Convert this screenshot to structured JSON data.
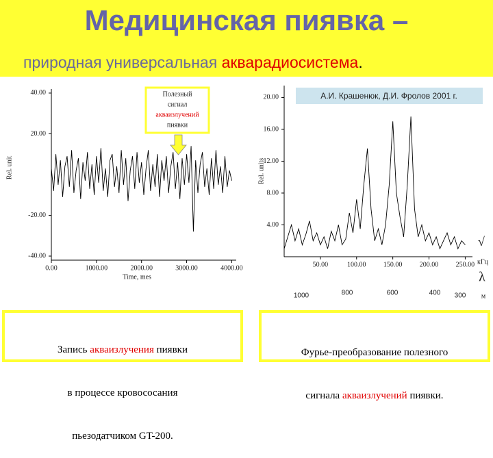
{
  "header": {
    "title": "Медицинская пиявка –",
    "subtitle": [
      "природная универсальная ",
      "акварадиосистема",
      "."
    ]
  },
  "chart_data": [
    {
      "type": "line",
      "ylabel": "Rel. unit",
      "xlabel": "Time, mes",
      "annotation": [
        "Полезный",
        "сигнал",
        "акваизлучений",
        "пиявки"
      ],
      "xlim": [
        0,
        4100
      ],
      "ylim": [
        -42,
        42
      ],
      "xticks": [
        {
          "value": 0,
          "label": "0.00"
        },
        {
          "value": 1000,
          "label": "1000.00"
        },
        {
          "value": 2000,
          "label": "2000.00"
        },
        {
          "value": 3000,
          "label": "3000.00"
        },
        {
          "value": 4000,
          "label": "4000.00"
        }
      ],
      "yticks": [
        {
          "value": 40,
          "label": "40.00"
        },
        {
          "value": 20,
          "label": "20.00"
        },
        {
          "value": -20,
          "label": "-20.00"
        },
        {
          "value": -40,
          "label": "-40.00"
        }
      ],
      "x": [
        0,
        50,
        100,
        150,
        200,
        250,
        300,
        350,
        400,
        450,
        500,
        550,
        600,
        650,
        700,
        750,
        800,
        850,
        900,
        950,
        1000,
        1050,
        1100,
        1150,
        1200,
        1250,
        1300,
        1350,
        1400,
        1450,
        1500,
        1550,
        1600,
        1650,
        1700,
        1750,
        1800,
        1850,
        1900,
        1950,
        2000,
        2050,
        2100,
        2150,
        2200,
        2250,
        2300,
        2350,
        2400,
        2450,
        2500,
        2550,
        2600,
        2650,
        2700,
        2750,
        2800,
        2850,
        2900,
        2950,
        3000,
        3050,
        3100,
        3150,
        3200,
        3250,
        3300,
        3350,
        3400,
        3450,
        3500,
        3550,
        3600,
        3650,
        3700,
        3750,
        3800,
        3850,
        3900,
        3950,
        4000
      ],
      "series": [
        {
          "color": "#000000",
          "values": [
            3,
            -8,
            10,
            -5,
            7,
            -11,
            4,
            9,
            -6,
            12,
            -9,
            2,
            8,
            -12,
            6,
            -3,
            11,
            -7,
            5,
            -10,
            9,
            -4,
            13,
            -8,
            3,
            -11,
            7,
            10,
            -6,
            4,
            -9,
            12,
            -5,
            8,
            -13,
            2,
            9,
            -7,
            11,
            -4,
            6,
            -10,
            3,
            12,
            -8,
            5,
            -6,
            10,
            -11,
            7,
            -3,
            9,
            -9,
            4,
            11,
            -7,
            6,
            -12,
            8,
            -5,
            10,
            -4,
            14,
            -28,
            7,
            -9,
            5,
            11,
            -6,
            3,
            -10,
            8,
            -7,
            12,
            -5,
            4,
            -9,
            9,
            -6,
            2,
            -3
          ]
        }
      ]
    },
    {
      "type": "line",
      "ylabel": "Rel. units",
      "x_symbol": "√",
      "x_unit": "кГц",
      "annotation": "А.И. Крашенюк, Д.И. Фролов 2001 г.",
      "wavelength_axis": {
        "symbol": "λ",
        "unit": "м",
        "labels": [
          "1000",
          "800",
          "600",
          "400",
          "300"
        ]
      },
      "xlim": [
        0,
        260
      ],
      "ylim": [
        0,
        21.5
      ],
      "xticks": [
        {
          "value": 50,
          "label": "50.00"
        },
        {
          "value": 100,
          "label": "100.00"
        },
        {
          "value": 150,
          "label": "150.00"
        },
        {
          "value": 200,
          "label": "200.00"
        },
        {
          "value": 250,
          "label": "250.00"
        }
      ],
      "yticks": [
        {
          "value": 4,
          "label": "4.00"
        },
        {
          "value": 8,
          "label": "8.00"
        },
        {
          "value": 12,
          "label": "12.00"
        },
        {
          "value": 16,
          "label": "16.00"
        },
        {
          "value": 20,
          "label": "20.00"
        }
      ],
      "x": [
        0,
        5,
        10,
        15,
        20,
        25,
        30,
        35,
        40,
        45,
        50,
        55,
        60,
        65,
        70,
        75,
        80,
        85,
        90,
        95,
        100,
        105,
        110,
        115,
        120,
        125,
        130,
        135,
        140,
        145,
        150,
        155,
        160,
        165,
        170,
        175,
        180,
        185,
        190,
        195,
        200,
        205,
        210,
        215,
        220,
        225,
        230,
        235,
        240,
        245,
        250
      ],
      "series": [
        {
          "color": "#000000",
          "values": [
            1.0,
            2.5,
            4.0,
            2.0,
            3.5,
            1.5,
            2.8,
            4.5,
            2.0,
            3.0,
            1.5,
            2.5,
            1.0,
            3.2,
            2.0,
            4.0,
            1.5,
            2.2,
            5.5,
            3.0,
            7.2,
            3.5,
            9.0,
            13.6,
            6.0,
            2.0,
            3.5,
            1.5,
            4.0,
            9.0,
            17.0,
            8.0,
            5.0,
            2.5,
            9.0,
            17.6,
            6.0,
            2.5,
            4.0,
            2.0,
            3.0,
            1.5,
            2.5,
            1.0,
            2.0,
            3.0,
            1.5,
            2.5,
            1.0,
            2.0,
            1.5
          ]
        }
      ]
    }
  ],
  "captions": [
    {
      "lines": [
        [
          "Запись ",
          "акваизлучения",
          " пиявки"
        ],
        [
          "в процессе кровососания"
        ],
        [
          "пьезодатчиком GT-200."
        ]
      ]
    },
    {
      "lines": [
        [
          "Фурье-преобразование полезного"
        ],
        [
          "сигнала ",
          "акваизлучений",
          " пиявки."
        ]
      ]
    }
  ]
}
